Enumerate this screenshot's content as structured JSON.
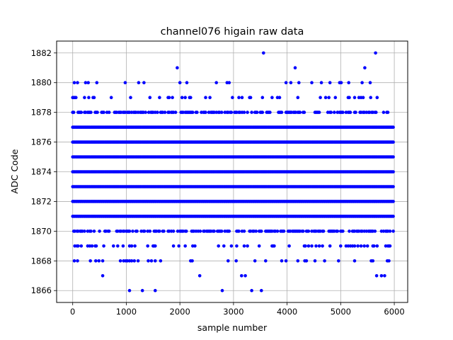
{
  "chart_data": {
    "type": "scatter",
    "title": "channel076 higain raw data",
    "xlabel": "sample number",
    "ylabel": "ADC Code",
    "xlim": [
      -300,
      6250
    ],
    "ylim": [
      1865.2,
      1882.8
    ],
    "xticks": [
      0,
      1000,
      2000,
      3000,
      4000,
      5000,
      6000
    ],
    "yticks": [
      1866,
      1868,
      1870,
      1872,
      1874,
      1876,
      1878,
      1880,
      1882
    ],
    "grid": true,
    "marker_color": "#0000ff",
    "n_samples": 6000,
    "dense_levels": [
      1871,
      1872,
      1873,
      1874,
      1875,
      1876,
      1877
    ],
    "sparse_levels": [
      {
        "y": 1878,
        "density": 0.55
      },
      {
        "y": 1870,
        "density": 0.55
      },
      {
        "y": 1869,
        "density": 0.2
      },
      {
        "y": 1879,
        "density": 0.12
      }
    ],
    "outliers": [
      {
        "x": 1060,
        "y": 1866
      },
      {
        "x": 1300,
        "y": 1866
      },
      {
        "x": 1540,
        "y": 1866
      },
      {
        "x": 2790,
        "y": 1866
      },
      {
        "x": 3340,
        "y": 1866
      },
      {
        "x": 3520,
        "y": 1866
      },
      {
        "x": 560,
        "y": 1867
      },
      {
        "x": 2370,
        "y": 1867
      },
      {
        "x": 3150,
        "y": 1867
      },
      {
        "x": 3220,
        "y": 1867
      },
      {
        "x": 5670,
        "y": 1867
      },
      {
        "x": 5760,
        "y": 1867
      },
      {
        "x": 5820,
        "y": 1867
      },
      {
        "x": 30,
        "y": 1868
      },
      {
        "x": 90,
        "y": 1868
      },
      {
        "x": 330,
        "y": 1868
      },
      {
        "x": 430,
        "y": 1868
      },
      {
        "x": 490,
        "y": 1868
      },
      {
        "x": 560,
        "y": 1868
      },
      {
        "x": 890,
        "y": 1868
      },
      {
        "x": 950,
        "y": 1868
      },
      {
        "x": 990,
        "y": 1868
      },
      {
        "x": 1020,
        "y": 1868
      },
      {
        "x": 1060,
        "y": 1868
      },
      {
        "x": 1100,
        "y": 1868
      },
      {
        "x": 1150,
        "y": 1868
      },
      {
        "x": 1220,
        "y": 1868
      },
      {
        "x": 1410,
        "y": 1868
      },
      {
        "x": 1470,
        "y": 1868
      },
      {
        "x": 1540,
        "y": 1868
      },
      {
        "x": 1640,
        "y": 1868
      },
      {
        "x": 2200,
        "y": 1868
      },
      {
        "x": 2230,
        "y": 1868
      },
      {
        "x": 2900,
        "y": 1868
      },
      {
        "x": 3050,
        "y": 1868
      },
      {
        "x": 3400,
        "y": 1868
      },
      {
        "x": 3600,
        "y": 1868
      },
      {
        "x": 3900,
        "y": 1868
      },
      {
        "x": 3980,
        "y": 1868
      },
      {
        "x": 4200,
        "y": 1868
      },
      {
        "x": 4330,
        "y": 1868
      },
      {
        "x": 4360,
        "y": 1868
      },
      {
        "x": 4520,
        "y": 1868
      },
      {
        "x": 4700,
        "y": 1868
      },
      {
        "x": 4960,
        "y": 1868
      },
      {
        "x": 5260,
        "y": 1868
      },
      {
        "x": 5570,
        "y": 1868
      },
      {
        "x": 5600,
        "y": 1868
      },
      {
        "x": 5870,
        "y": 1868
      },
      {
        "x": 5900,
        "y": 1868
      },
      {
        "x": 30,
        "y": 1880
      },
      {
        "x": 90,
        "y": 1880
      },
      {
        "x": 240,
        "y": 1880
      },
      {
        "x": 290,
        "y": 1880
      },
      {
        "x": 450,
        "y": 1880
      },
      {
        "x": 980,
        "y": 1880
      },
      {
        "x": 1230,
        "y": 1880
      },
      {
        "x": 1330,
        "y": 1880
      },
      {
        "x": 2000,
        "y": 1880
      },
      {
        "x": 2130,
        "y": 1880
      },
      {
        "x": 2680,
        "y": 1880
      },
      {
        "x": 2880,
        "y": 1880
      },
      {
        "x": 2920,
        "y": 1880
      },
      {
        "x": 3980,
        "y": 1880
      },
      {
        "x": 4070,
        "y": 1880
      },
      {
        "x": 4220,
        "y": 1880
      },
      {
        "x": 4460,
        "y": 1880
      },
      {
        "x": 4640,
        "y": 1880
      },
      {
        "x": 4800,
        "y": 1880
      },
      {
        "x": 4980,
        "y": 1880
      },
      {
        "x": 5010,
        "y": 1880
      },
      {
        "x": 5150,
        "y": 1880
      },
      {
        "x": 5400,
        "y": 1880
      },
      {
        "x": 5550,
        "y": 1880
      },
      {
        "x": 1950,
        "y": 1881
      },
      {
        "x": 4150,
        "y": 1881
      },
      {
        "x": 5450,
        "y": 1881
      },
      {
        "x": 3560,
        "y": 1882
      },
      {
        "x": 5650,
        "y": 1882
      }
    ]
  }
}
